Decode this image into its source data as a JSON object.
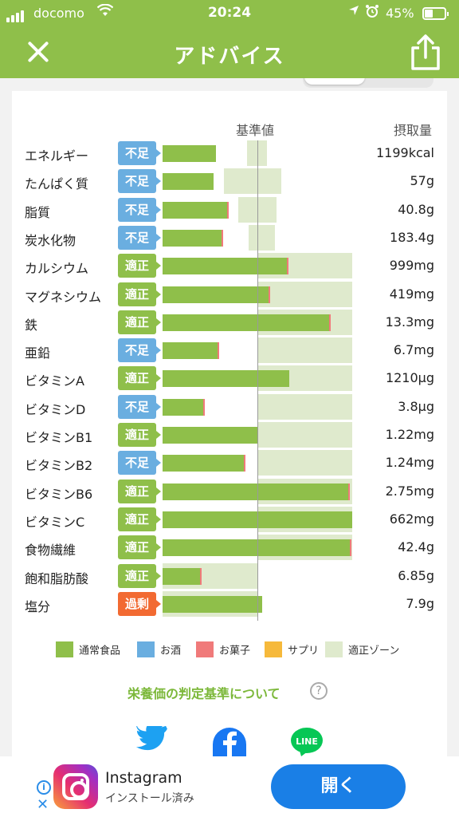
{
  "status_bar": {
    "carrier": "docomo",
    "time": "20:24",
    "battery": "45%"
  },
  "nav": {
    "title": "アドバイス"
  },
  "header": {
    "reference": "基準値",
    "intake": "摂取量"
  },
  "nutrients": [
    {
      "name": "エネルギー",
      "status": "不足",
      "value": "1199kcal"
    },
    {
      "name": "たんぱく質",
      "status": "不足",
      "value": "57g"
    },
    {
      "name": "脂質",
      "status": "不足",
      "value": "40.8g"
    },
    {
      "name": "炭水化物",
      "status": "不足",
      "value": "183.4g"
    },
    {
      "name": "カルシウム",
      "status": "適正",
      "value": "999mg"
    },
    {
      "name": "マグネシウム",
      "status": "適正",
      "value": "419mg"
    },
    {
      "name": "鉄",
      "status": "適正",
      "value": "13.3mg"
    },
    {
      "name": "亜鉛",
      "status": "不足",
      "value": "6.7mg"
    },
    {
      "name": "ビタミンA",
      "status": "適正",
      "value": "1210µg"
    },
    {
      "name": "ビタミンD",
      "status": "不足",
      "value": "3.8µg"
    },
    {
      "name": "ビタミンB1",
      "status": "適正",
      "value": "1.22mg"
    },
    {
      "name": "ビタミンB2",
      "status": "不足",
      "value": "1.24mg"
    },
    {
      "name": "ビタミンB6",
      "status": "適正",
      "value": "2.75mg"
    },
    {
      "name": "ビタミンC",
      "status": "適正",
      "value": "662mg"
    },
    {
      "name": "食物繊維",
      "status": "適正",
      "value": "42.4g"
    },
    {
      "name": "飽和脂肪酸",
      "status": "適正",
      "value": "6.85g"
    },
    {
      "name": "塩分",
      "status": "過剰",
      "value": "7.9g"
    }
  ],
  "legend": [
    {
      "label": "通常食品",
      "color": "#8fbf4a"
    },
    {
      "label": "お酒",
      "color": "#6aaee0"
    },
    {
      "label": "お菓子",
      "color": "#f07a7a"
    },
    {
      "label": "サプリ",
      "color": "#f6b93b"
    },
    {
      "label": "適正ゾーン",
      "color": "#dfeacd"
    }
  ],
  "criteria_link": "栄養価の判定基準について",
  "help_icon": "?",
  "share": {
    "line_label": "LINE"
  },
  "ad": {
    "app_name": "Instagram",
    "subtitle": "インストール済み",
    "open_label": "開く",
    "info_glyph": "i",
    "close_glyph": "✕"
  }
}
